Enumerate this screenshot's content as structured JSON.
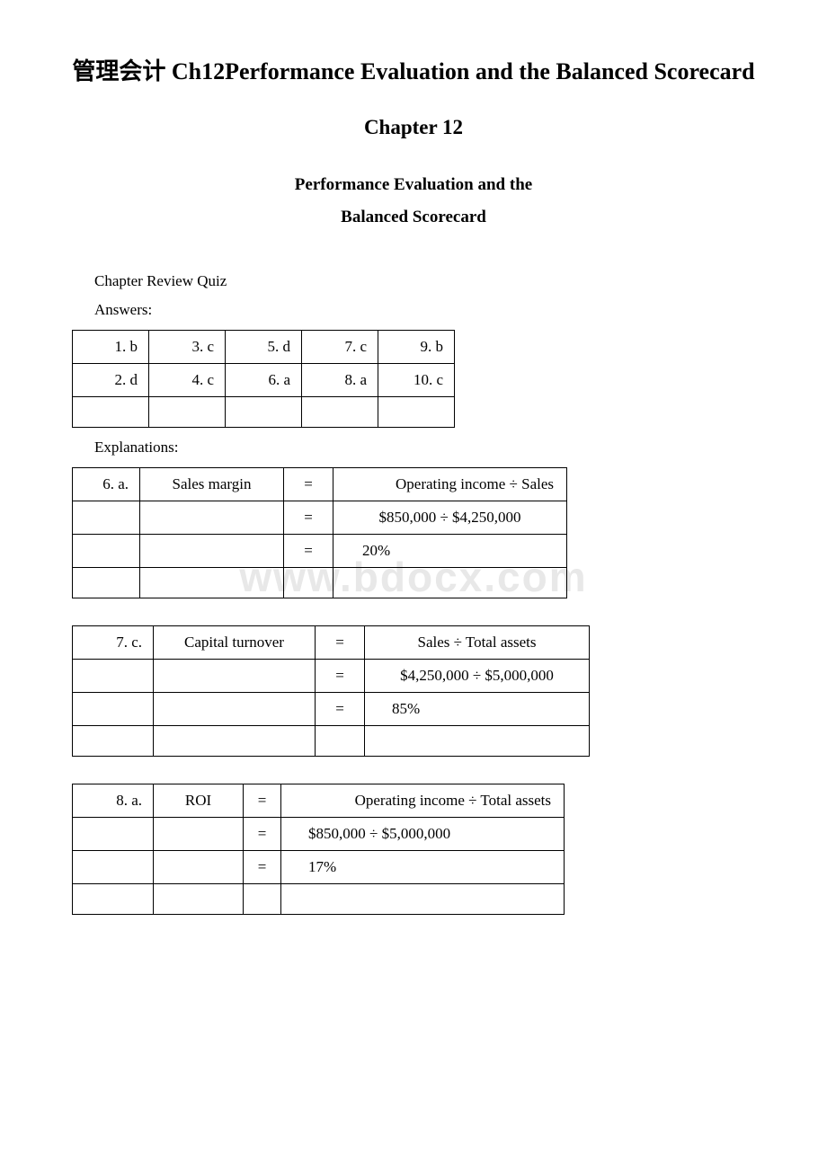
{
  "watermark": "www.bdocx.com",
  "title_main": "管理会计 Ch12Performance Evaluation and the Balanced Scorecard",
  "title_chapter": "Chapter 12",
  "subtitle_1": "Performance Evaluation and the",
  "subtitle_2": "Balanced Scorecard",
  "section_quiz": "Chapter Review Quiz",
  "section_answers": "Answers:",
  "section_explanations": "Explanations:",
  "answers": {
    "rows": [
      [
        "1. b",
        "3. c",
        "5. d",
        "7. c",
        "9. b"
      ],
      [
        "2. d",
        "4. c",
        "6. a",
        "8. a",
        "10. c"
      ]
    ]
  },
  "exp6": {
    "num": "6. a.",
    "label": "Sales margin",
    "eq": "=",
    "row1": "Operating income ÷ Sales",
    "row2": "$850,000 ÷ $4,250,000",
    "row3": "20%"
  },
  "exp7": {
    "num": "7. c.",
    "label": "Capital turnover",
    "eq": "=",
    "row1": "Sales ÷ Total assets",
    "row2": "$4,250,000 ÷ $5,000,000",
    "row3": "85%"
  },
  "exp8": {
    "num": "8. a.",
    "label": "ROI",
    "eq": "=",
    "row1": "Operating income ÷ Total assets",
    "row2": "$850,000 ÷ $5,000,000",
    "row3": "17%"
  }
}
